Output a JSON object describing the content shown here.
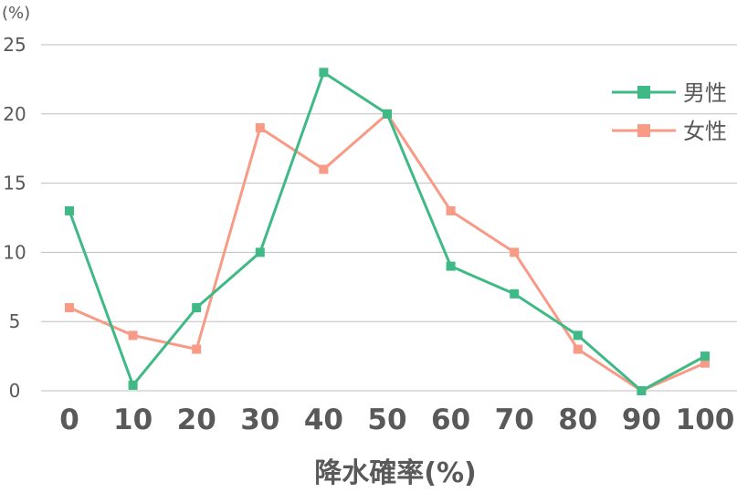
{
  "chart_data": {
    "type": "line",
    "y_unit": "(%)",
    "xlabel": "降水確率(%)",
    "ylabel": "",
    "ylim": [
      0,
      25
    ],
    "yticks": [
      0,
      5,
      10,
      15,
      20,
      25
    ],
    "categories": [
      "0",
      "10",
      "20",
      "30",
      "40",
      "50",
      "60",
      "70",
      "80",
      "90",
      "100"
    ],
    "grid": "horizontal",
    "legend_position": "top-right",
    "series": [
      {
        "name": "男性",
        "color": "#3fb985",
        "marker": "square",
        "values": [
          13,
          0.4,
          6,
          10,
          23,
          20,
          9,
          7,
          4,
          0,
          2.5
        ]
      },
      {
        "name": "女性",
        "color": "#f79a86",
        "marker": "square",
        "values": [
          6,
          4,
          3,
          19,
          16,
          20,
          13,
          10,
          3,
          0,
          2
        ]
      }
    ]
  }
}
